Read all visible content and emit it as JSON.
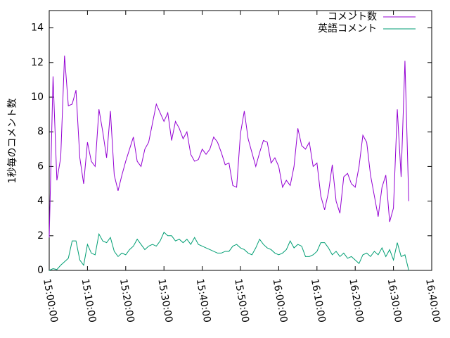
{
  "chart_data": {
    "type": "line",
    "y_label": "1秒毎のコメント数",
    "x": [
      "15:00:00",
      "15:01:00",
      "15:02:00",
      "15:03:00",
      "15:04:00",
      "15:05:00",
      "15:06:00",
      "15:07:00",
      "15:08:00",
      "15:09:00",
      "15:10:00",
      "15:11:00",
      "15:12:00",
      "15:13:00",
      "15:14:00",
      "15:15:00",
      "15:16:00",
      "15:17:00",
      "15:18:00",
      "15:19:00",
      "15:20:00",
      "15:21:00",
      "15:22:00",
      "15:23:00",
      "15:24:00",
      "15:25:00",
      "15:26:00",
      "15:27:00",
      "15:28:00",
      "15:29:00",
      "15:30:00",
      "15:31:00",
      "15:32:00",
      "15:33:00",
      "15:34:00",
      "15:35:00",
      "15:36:00",
      "15:37:00",
      "15:38:00",
      "15:39:00",
      "15:40:00",
      "15:41:00",
      "15:42:00",
      "15:43:00",
      "15:44:00",
      "15:45:00",
      "15:46:00",
      "15:47:00",
      "15:48:00",
      "15:49:00",
      "15:50:00",
      "15:51:00",
      "15:52:00",
      "15:53:00",
      "15:54:00",
      "15:55:00",
      "15:56:00",
      "15:57:00",
      "15:58:00",
      "15:59:00",
      "16:00:00",
      "16:01:00",
      "16:02:00",
      "16:03:00",
      "16:04:00",
      "16:05:00",
      "16:06:00",
      "16:07:00",
      "16:08:00",
      "16:09:00",
      "16:10:00",
      "16:11:00",
      "16:12:00",
      "16:13:00",
      "16:14:00",
      "16:15:00",
      "16:16:00",
      "16:17:00",
      "16:18:00",
      "16:19:00",
      "16:20:00",
      "16:21:00",
      "16:22:00",
      "16:23:00",
      "16:24:00",
      "16:25:00",
      "16:26:00",
      "16:27:00",
      "16:28:00",
      "16:29:00",
      "16:30:00",
      "16:31:00",
      "16:32:00",
      "16:33:00",
      "16:34:00"
    ],
    "series": [
      {
        "name": "コメント数",
        "color": "#9400d3",
        "values": [
          1.9,
          11.2,
          5.2,
          6.5,
          12.4,
          9.5,
          9.6,
          10.4,
          6.5,
          5.0,
          7.4,
          6.3,
          6.0,
          9.3,
          8.0,
          6.5,
          9.2,
          5.5,
          4.6,
          5.5,
          6.3,
          7.0,
          7.7,
          6.3,
          6.0,
          7.0,
          7.4,
          8.5,
          9.6,
          9.1,
          8.6,
          9.1,
          7.5,
          8.6,
          8.2,
          7.6,
          8.0,
          6.7,
          6.3,
          6.4,
          7.0,
          6.7,
          7.0,
          7.7,
          7.4,
          6.8,
          6.1,
          6.2,
          4.9,
          4.8,
          7.9,
          9.2,
          7.6,
          6.8,
          6.0,
          6.8,
          7.5,
          7.4,
          6.2,
          6.5,
          6.0,
          4.8,
          5.2,
          4.9,
          6.0,
          8.2,
          7.2,
          7.0,
          7.4,
          6.0,
          6.2,
          4.3,
          3.5,
          4.5,
          6.1,
          4.0,
          3.3,
          5.4,
          5.6,
          5.0,
          4.8,
          6.0,
          7.8,
          7.4,
          5.5,
          4.3,
          3.1,
          4.8,
          5.5,
          2.8,
          3.6,
          9.3,
          5.4,
          12.1,
          4.0
        ]
      },
      {
        "name": "英語コメント",
        "color": "#009e73",
        "values": [
          0,
          0.1,
          0.05,
          0.3,
          0.5,
          0.7,
          1.7,
          1.7,
          0.6,
          0.3,
          1.5,
          1.0,
          0.9,
          2.1,
          1.7,
          1.6,
          1.9,
          1.1,
          0.8,
          1.0,
          0.9,
          1.2,
          1.4,
          1.8,
          1.5,
          1.2,
          1.4,
          1.5,
          1.4,
          1.7,
          2.2,
          2.0,
          2.0,
          1.7,
          1.8,
          1.6,
          1.8,
          1.5,
          1.9,
          1.5,
          1.4,
          1.3,
          1.2,
          1.1,
          1.0,
          1.0,
          1.1,
          1.1,
          1.4,
          1.5,
          1.3,
          1.2,
          1.0,
          0.9,
          1.3,
          1.8,
          1.5,
          1.3,
          1.2,
          1.0,
          0.9,
          1.0,
          1.2,
          1.7,
          1.3,
          1.5,
          1.4,
          0.8,
          0.8,
          0.9,
          1.1,
          1.6,
          1.6,
          1.3,
          0.9,
          1.1,
          0.8,
          1.0,
          0.7,
          0.8,
          0.6,
          0.4,
          0.9,
          1.0,
          0.8,
          1.1,
          0.9,
          1.3,
          0.8,
          1.2,
          0.6,
          1.6,
          0.8,
          0.9,
          0.0
        ]
      }
    ],
    "xlim": [
      "15:00:00",
      "16:40:00"
    ],
    "xticks": [
      "15:00:00",
      "15:10:00",
      "15:20:00",
      "15:30:00",
      "15:40:00",
      "15:50:00",
      "16:00:00",
      "16:10:00",
      "16:20:00",
      "16:30:00",
      "16:40:00"
    ],
    "ylim": [
      0,
      15
    ],
    "yticks": [
      0,
      2,
      4,
      6,
      8,
      10,
      12,
      14
    ],
    "legend": "top-right"
  }
}
